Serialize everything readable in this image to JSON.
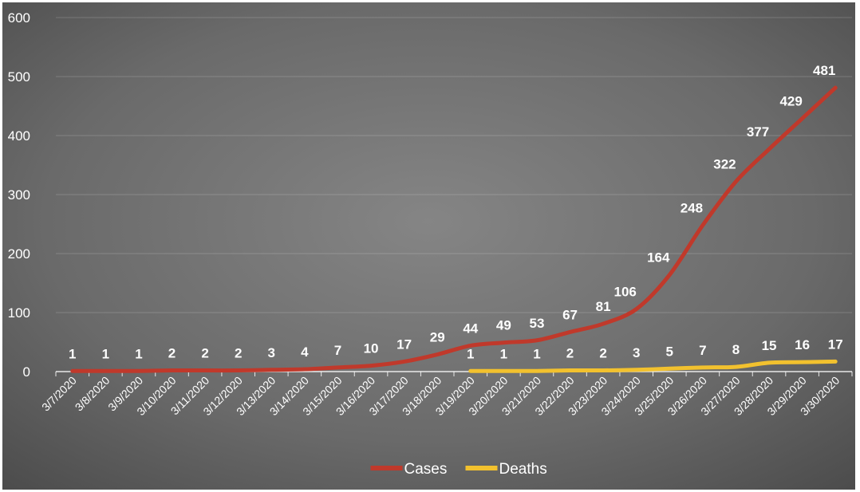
{
  "chart_data": {
    "type": "line",
    "title": "",
    "xlabel": "",
    "ylabel": "",
    "ylim": [
      0,
      600
    ],
    "y_ticks": [
      0,
      100,
      200,
      300,
      400,
      500,
      600
    ],
    "grid": true,
    "legend_position": "bottom",
    "x": [
      "3/7/2020",
      "3/8/2020",
      "3/9/2020",
      "3/10/2020",
      "3/11/2020",
      "3/12/2020",
      "3/13/2020",
      "3/14/2020",
      "3/15/2020",
      "3/16/2020",
      "3/17/2020",
      "3/18/2020",
      "3/19/2020",
      "3/20/2020",
      "3/21/2020",
      "3/22/2020",
      "3/23/2020",
      "3/24/2020",
      "3/25/2020",
      "3/26/2020",
      "3/27/2020",
      "3/28/2020",
      "3/29/2020",
      "3/30/2020"
    ],
    "series": [
      {
        "name": "Cases",
        "color": "#c0392b",
        "values": [
          1,
          1,
          1,
          2,
          2,
          2,
          3,
          4,
          7,
          10,
          17,
          29,
          44,
          49,
          53,
          67,
          81,
          106,
          164,
          248,
          322,
          377,
          429,
          481
        ]
      },
      {
        "name": "Deaths",
        "color": "#f2c12e",
        "values": [
          null,
          null,
          null,
          null,
          null,
          null,
          null,
          null,
          null,
          null,
          null,
          null,
          1,
          1,
          1,
          2,
          2,
          3,
          5,
          7,
          8,
          15,
          16,
          17
        ]
      }
    ]
  }
}
